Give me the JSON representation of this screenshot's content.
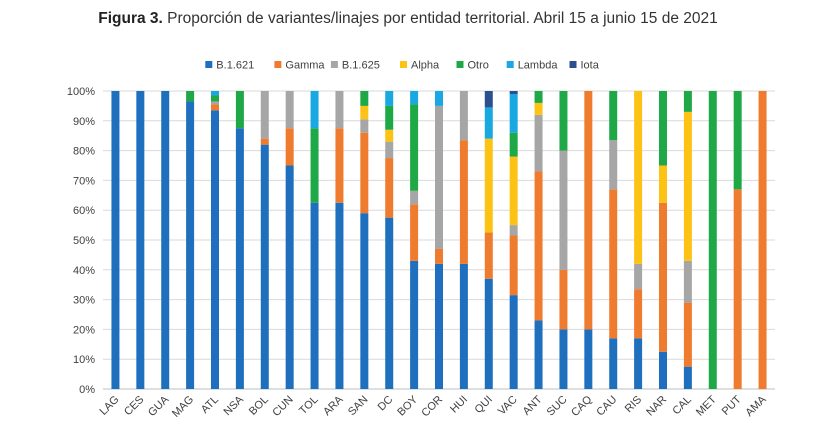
{
  "chart_data": {
    "type": "bar",
    "stacked": true,
    "title_prefix": "Figura 3.",
    "title": "Proporción de variantes/linajes por entidad territorial. Abril 15 a junio 15 de 2021",
    "xlabel": "",
    "ylabel": "",
    "ylim": [
      0,
      100
    ],
    "y_ticks": [
      "0%",
      "10%",
      "20%",
      "30%",
      "40%",
      "50%",
      "60%",
      "70%",
      "80%",
      "90%",
      "100%"
    ],
    "grid": true,
    "legend_position": "top",
    "categories": [
      "LAG",
      "CES",
      "GUA",
      "MAG",
      "ATL",
      "NSA",
      "BOL",
      "CUN",
      "TOL",
      "ARA",
      "SAN",
      "DC",
      "BOY",
      "COR",
      "HUI",
      "QUI",
      "VAC",
      "ANT",
      "SUC",
      "CAQ",
      "CAU",
      "RIS",
      "NAR",
      "CAL",
      "MET",
      "PUT",
      "AMA"
    ],
    "series": [
      {
        "name": "B.1.621",
        "color": "#1f6fbf",
        "values": [
          100,
          100,
          100,
          96.5,
          93.5,
          87.5,
          82,
          75,
          62.5,
          62.5,
          59,
          57.5,
          43,
          42,
          42,
          37,
          31.5,
          23,
          20,
          20,
          17,
          17,
          12.5,
          7.5,
          0,
          0,
          0
        ]
      },
      {
        "name": "Gamma",
        "color": "#ef7b2f",
        "values": [
          0,
          0,
          0,
          0,
          2,
          0,
          2,
          12.5,
          0,
          25,
          27,
          20,
          19,
          5,
          41.5,
          15.5,
          20,
          50,
          20,
          80,
          50,
          16.5,
          50,
          21.5,
          0,
          67,
          100
        ]
      },
      {
        "name": "B.1.625",
        "color": "#a6a6a6",
        "values": [
          0,
          0,
          0,
          0,
          1,
          0,
          16,
          12.5,
          0,
          12.5,
          4.5,
          5.5,
          4.5,
          48,
          16.5,
          0,
          3.5,
          19,
          40,
          0,
          16.5,
          8.5,
          0,
          14,
          0,
          0,
          0
        ]
      },
      {
        "name": "Alpha",
        "color": "#fcc314",
        "values": [
          0,
          0,
          0,
          0,
          0,
          0,
          0,
          0,
          0,
          0,
          4.5,
          4,
          0,
          0,
          0,
          31.5,
          23,
          4,
          0,
          0,
          0,
          58,
          12.5,
          50,
          0,
          0,
          0
        ]
      },
      {
        "name": "Otro",
        "color": "#1fa846",
        "values": [
          0,
          0,
          0,
          3.5,
          2,
          12.5,
          0,
          0,
          25,
          0,
          5,
          8,
          29,
          0,
          0,
          0,
          8,
          4,
          20,
          0,
          16.5,
          0,
          25,
          7,
          100,
          33,
          0
        ]
      },
      {
        "name": "Lambda",
        "color": "#19a8e2",
        "values": [
          0,
          0,
          0,
          0,
          1.5,
          0,
          0,
          0,
          12.5,
          0,
          0,
          5,
          4.5,
          5,
          0,
          10.5,
          13,
          0,
          0,
          0,
          0,
          0,
          0,
          0,
          0,
          0,
          0
        ]
      },
      {
        "name": "Iota",
        "color": "#2b4f8f",
        "values": [
          0,
          0,
          0,
          0,
          0,
          0,
          0,
          0,
          0,
          0,
          0,
          0,
          0,
          0,
          0,
          5.5,
          1,
          0,
          0,
          0,
          0,
          0,
          0,
          0,
          0,
          0,
          0
        ]
      }
    ]
  }
}
